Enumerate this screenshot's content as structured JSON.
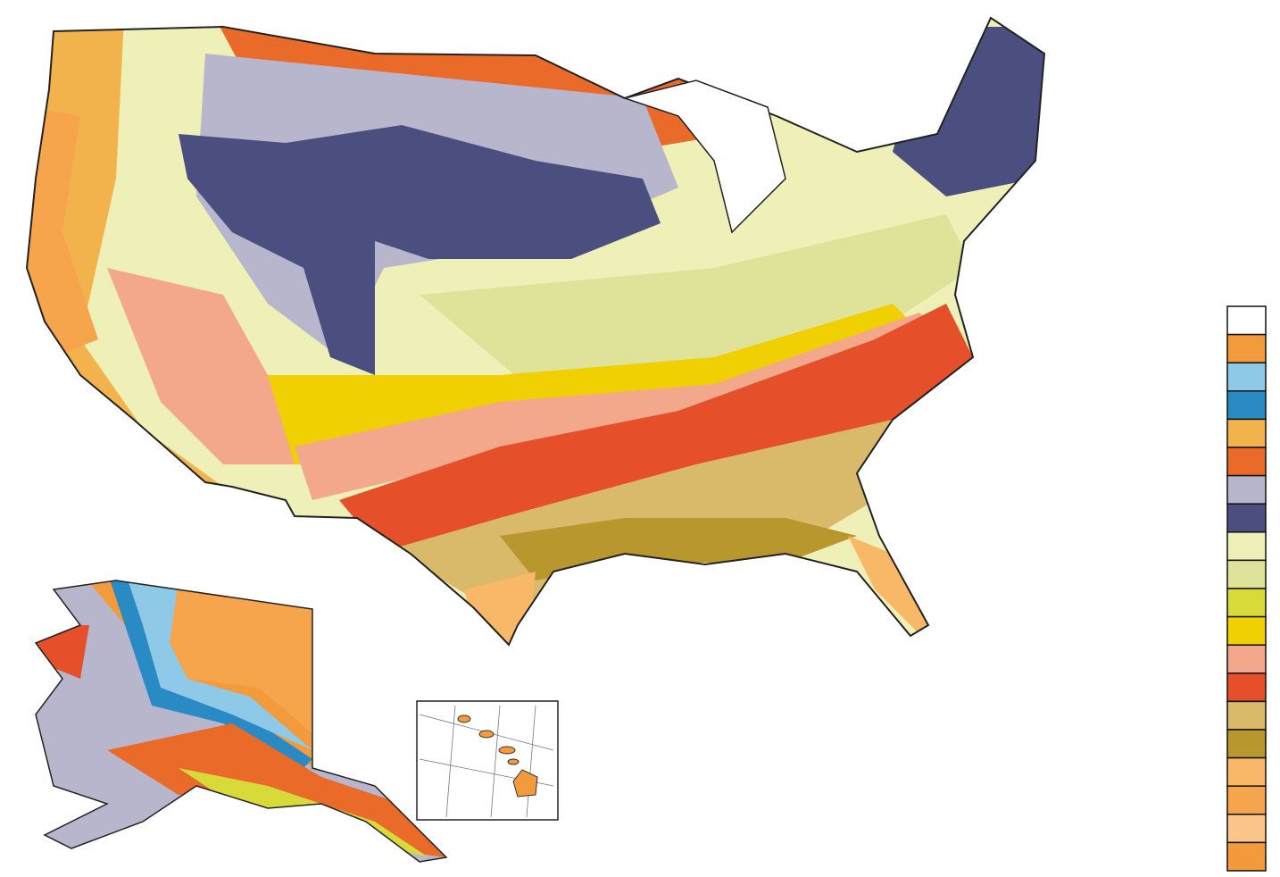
{
  "legend": {
    "colors": [
      "#ffffff",
      "#f39a3c",
      "#8fc9e8",
      "#2a8ac4",
      "#f2b34c",
      "#ea6a2a",
      "#b7b6cc",
      "#4a4f80",
      "#eef0b8",
      "#dfe39a",
      "#d8da3a",
      "#f0d000",
      "#f3a88c",
      "#e5502a",
      "#d9b96a",
      "#b8972e",
      "#f8b867",
      "#f7a54c",
      "#fcc68a",
      "#f29a3c"
    ]
  }
}
